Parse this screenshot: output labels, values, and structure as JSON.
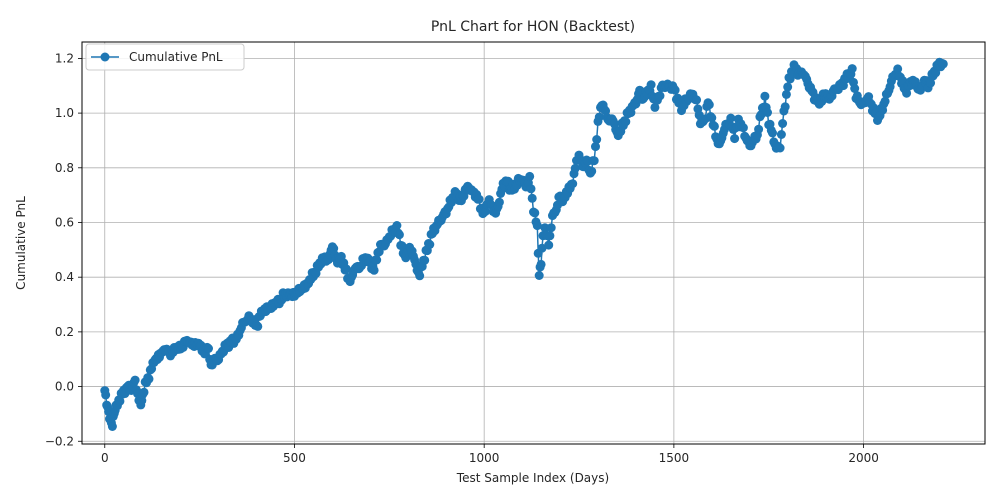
{
  "chart_data": {
    "type": "line",
    "title": "PnL Chart for HON (Backtest)",
    "xlabel": "Test Sample Index (Days)",
    "ylabel": "Cumulative PnL",
    "xlim": [
      -60,
      2320
    ],
    "ylim": [
      -0.21,
      1.26
    ],
    "xticks": [
      0,
      500,
      1000,
      1500,
      2000
    ],
    "yticks": [
      -0.2,
      0.0,
      0.2,
      0.4,
      0.6,
      0.8,
      1.0,
      1.2
    ],
    "xtick_labels": [
      "0",
      "500",
      "1000",
      "1500",
      "2000"
    ],
    "ytick_labels": [
      "−0.2",
      "0.0",
      "0.2",
      "0.4",
      "0.6",
      "0.8",
      "1.0",
      "1.2"
    ],
    "grid": true,
    "legend_position": "top-left",
    "series": [
      {
        "name": "Cumulative PnL",
        "color": "#1f77b4",
        "marker": "circle",
        "keypoints": [
          [
            0,
            -0.02
          ],
          [
            5,
            -0.06
          ],
          [
            10,
            -0.09
          ],
          [
            15,
            -0.12
          ],
          [
            20,
            -0.14
          ],
          [
            25,
            -0.1
          ],
          [
            30,
            -0.08
          ],
          [
            40,
            -0.04
          ],
          [
            50,
            -0.02
          ],
          [
            60,
            0.0
          ],
          [
            70,
            -0.01
          ],
          [
            80,
            0.02
          ],
          [
            90,
            -0.05
          ],
          [
            95,
            -0.06
          ],
          [
            100,
            -0.03
          ],
          [
            110,
            0.02
          ],
          [
            120,
            0.05
          ],
          [
            130,
            0.1
          ],
          [
            150,
            0.12
          ],
          [
            160,
            0.14
          ],
          [
            170,
            0.12
          ],
          [
            180,
            0.13
          ],
          [
            200,
            0.14
          ],
          [
            210,
            0.16
          ],
          [
            220,
            0.17
          ],
          [
            230,
            0.15
          ],
          [
            250,
            0.16
          ],
          [
            260,
            0.12
          ],
          [
            270,
            0.15
          ],
          [
            280,
            0.08
          ],
          [
            290,
            0.1
          ],
          [
            300,
            0.1
          ],
          [
            310,
            0.13
          ],
          [
            320,
            0.15
          ],
          [
            330,
            0.16
          ],
          [
            340,
            0.17
          ],
          [
            350,
            0.18
          ],
          [
            360,
            0.22
          ],
          [
            370,
            0.24
          ],
          [
            380,
            0.25
          ],
          [
            390,
            0.24
          ],
          [
            400,
            0.22
          ],
          [
            410,
            0.26
          ],
          [
            430,
            0.29
          ],
          [
            450,
            0.31
          ],
          [
            460,
            0.31
          ],
          [
            470,
            0.33
          ],
          [
            480,
            0.34
          ],
          [
            500,
            0.33
          ],
          [
            520,
            0.36
          ],
          [
            540,
            0.39
          ],
          [
            550,
            0.41
          ],
          [
            560,
            0.43
          ],
          [
            570,
            0.46
          ],
          [
            580,
            0.47
          ],
          [
            590,
            0.46
          ],
          [
            600,
            0.52
          ],
          [
            610,
            0.46
          ],
          [
            620,
            0.47
          ],
          [
            630,
            0.45
          ],
          [
            640,
            0.4
          ],
          [
            650,
            0.39
          ],
          [
            660,
            0.44
          ],
          [
            670,
            0.43
          ],
          [
            680,
            0.46
          ],
          [
            690,
            0.47
          ],
          [
            700,
            0.45
          ],
          [
            710,
            0.43
          ],
          [
            720,
            0.49
          ],
          [
            730,
            0.52
          ],
          [
            740,
            0.52
          ],
          [
            750,
            0.55
          ],
          [
            760,
            0.57
          ],
          [
            770,
            0.58
          ],
          [
            780,
            0.53
          ],
          [
            790,
            0.47
          ],
          [
            800,
            0.5
          ],
          [
            810,
            0.5
          ],
          [
            820,
            0.44
          ],
          [
            830,
            0.41
          ],
          [
            840,
            0.46
          ],
          [
            850,
            0.5
          ],
          [
            860,
            0.55
          ],
          [
            870,
            0.58
          ],
          [
            880,
            0.6
          ],
          [
            890,
            0.62
          ],
          [
            900,
            0.64
          ],
          [
            910,
            0.67
          ],
          [
            920,
            0.7
          ],
          [
            930,
            0.7
          ],
          [
            940,
            0.68
          ],
          [
            950,
            0.72
          ],
          [
            960,
            0.73
          ],
          [
            970,
            0.71
          ],
          [
            980,
            0.7
          ],
          [
            990,
            0.66
          ],
          [
            1000,
            0.63
          ],
          [
            1010,
            0.68
          ],
          [
            1020,
            0.66
          ],
          [
            1030,
            0.63
          ],
          [
            1040,
            0.68
          ],
          [
            1050,
            0.74
          ],
          [
            1060,
            0.75
          ],
          [
            1070,
            0.72
          ],
          [
            1080,
            0.73
          ],
          [
            1090,
            0.75
          ],
          [
            1100,
            0.76
          ],
          [
            1110,
            0.73
          ],
          [
            1120,
            0.76
          ],
          [
            1130,
            0.65
          ],
          [
            1140,
            0.58
          ],
          [
            1145,
            0.4
          ],
          [
            1150,
            0.45
          ],
          [
            1155,
            0.55
          ],
          [
            1160,
            0.58
          ],
          [
            1170,
            0.52
          ],
          [
            1180,
            0.62
          ],
          [
            1190,
            0.65
          ],
          [
            1200,
            0.7
          ],
          [
            1210,
            0.68
          ],
          [
            1220,
            0.72
          ],
          [
            1230,
            0.73
          ],
          [
            1240,
            0.8
          ],
          [
            1250,
            0.85
          ],
          [
            1260,
            0.8
          ],
          [
            1270,
            0.83
          ],
          [
            1280,
            0.78
          ],
          [
            1290,
            0.83
          ],
          [
            1300,
            0.96
          ],
          [
            1310,
            1.04
          ],
          [
            1320,
            1.0
          ],
          [
            1330,
            0.97
          ],
          [
            1340,
            0.98
          ],
          [
            1350,
            0.92
          ],
          [
            1360,
            0.94
          ],
          [
            1370,
            0.97
          ],
          [
            1380,
            1.0
          ],
          [
            1390,
            1.02
          ],
          [
            1400,
            1.04
          ],
          [
            1410,
            1.08
          ],
          [
            1420,
            1.05
          ],
          [
            1430,
            1.08
          ],
          [
            1440,
            1.09
          ],
          [
            1450,
            1.03
          ],
          [
            1460,
            1.06
          ],
          [
            1470,
            1.1
          ],
          [
            1480,
            1.1
          ],
          [
            1490,
            1.1
          ],
          [
            1500,
            1.09
          ],
          [
            1510,
            1.05
          ],
          [
            1520,
            1.02
          ],
          [
            1530,
            1.04
          ],
          [
            1540,
            1.06
          ],
          [
            1550,
            1.07
          ],
          [
            1560,
            1.04
          ],
          [
            1570,
            0.97
          ],
          [
            1580,
            0.97
          ],
          [
            1590,
            1.04
          ],
          [
            1600,
            0.98
          ],
          [
            1610,
            0.92
          ],
          [
            1620,
            0.88
          ],
          [
            1630,
            0.93
          ],
          [
            1640,
            0.96
          ],
          [
            1650,
            0.97
          ],
          [
            1660,
            0.92
          ],
          [
            1670,
            0.97
          ],
          [
            1680,
            0.95
          ],
          [
            1690,
            0.91
          ],
          [
            1700,
            0.88
          ],
          [
            1710,
            0.9
          ],
          [
            1720,
            0.92
          ],
          [
            1730,
            1.0
          ],
          [
            1740,
            1.05
          ],
          [
            1750,
            0.97
          ],
          [
            1760,
            0.92
          ],
          [
            1770,
            0.87
          ],
          [
            1780,
            0.88
          ],
          [
            1790,
            1.0
          ],
          [
            1800,
            1.1
          ],
          [
            1810,
            1.15
          ],
          [
            1820,
            1.17
          ],
          [
            1830,
            1.14
          ],
          [
            1840,
            1.15
          ],
          [
            1850,
            1.12
          ],
          [
            1860,
            1.09
          ],
          [
            1870,
            1.06
          ],
          [
            1880,
            1.04
          ],
          [
            1890,
            1.05
          ],
          [
            1900,
            1.07
          ],
          [
            1910,
            1.05
          ],
          [
            1920,
            1.08
          ],
          [
            1930,
            1.09
          ],
          [
            1940,
            1.1
          ],
          [
            1950,
            1.12
          ],
          [
            1960,
            1.14
          ],
          [
            1970,
            1.15
          ],
          [
            1980,
            1.06
          ],
          [
            1990,
            1.04
          ],
          [
            2000,
            1.03
          ],
          [
            2010,
            1.06
          ],
          [
            2020,
            1.03
          ],
          [
            2030,
            1.0
          ],
          [
            2040,
            0.98
          ],
          [
            2050,
            1.02
          ],
          [
            2060,
            1.06
          ],
          [
            2070,
            1.1
          ],
          [
            2080,
            1.14
          ],
          [
            2090,
            1.15
          ],
          [
            2100,
            1.12
          ],
          [
            2110,
            1.08
          ],
          [
            2120,
            1.1
          ],
          [
            2130,
            1.12
          ],
          [
            2140,
            1.1
          ],
          [
            2150,
            1.08
          ],
          [
            2160,
            1.12
          ],
          [
            2170,
            1.1
          ],
          [
            2180,
            1.13
          ],
          [
            2190,
            1.16
          ],
          [
            2200,
            1.18
          ],
          [
            2210,
            1.18
          ]
        ]
      }
    ]
  }
}
